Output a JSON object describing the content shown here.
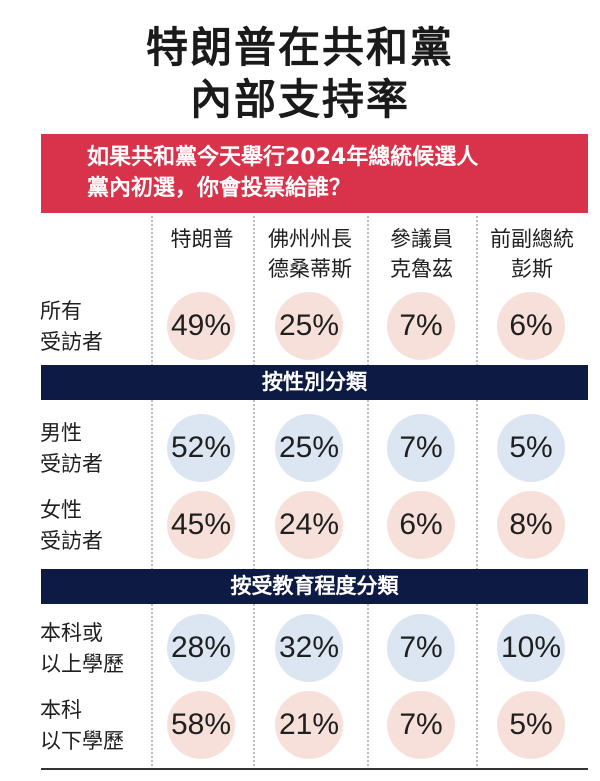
{
  "title_line1": "特朗普在共和黨",
  "title_line2": "內部支持率",
  "question_line1": "如果共和黨今天舉行2024年總統候選人",
  "question_line2": "黨內初選，你會投票給誰？",
  "columns": [
    {
      "line1": "特朗普",
      "line2": ""
    },
    {
      "line1": "佛州州長",
      "line2": "德桑蒂斯"
    },
    {
      "line1": "參議員",
      "line2": "克魯茲"
    },
    {
      "line1": "前副總統",
      "line2": "彭斯"
    }
  ],
  "sections": {
    "gender": "按性別分類",
    "education": "按受教育程度分類"
  },
  "colors": {
    "pink": "#f8e0da",
    "blue": "#dbe6f2",
    "red": "#d8334a",
    "navy": "#0d1a44"
  },
  "chart_data": {
    "type": "table",
    "categories": [
      "特朗普",
      "佛州州長德桑蒂斯",
      "參議員克魯茲",
      "前副總統彭斯"
    ],
    "rows": [
      {
        "label1": "所有",
        "label2": "受訪者",
        "values": [
          "49%",
          "25%",
          "7%",
          "6%"
        ],
        "color": "pink"
      },
      {
        "label1": "男性",
        "label2": "受訪者",
        "values": [
          "52%",
          "25%",
          "7%",
          "5%"
        ],
        "color": "blue"
      },
      {
        "label1": "女性",
        "label2": "受訪者",
        "values": [
          "45%",
          "24%",
          "6%",
          "8%"
        ],
        "color": "pink"
      },
      {
        "label1": "本科或",
        "label2": "以上學歷",
        "values": [
          "28%",
          "32%",
          "7%",
          "10%"
        ],
        "color": "blue"
      },
      {
        "label1": "本科",
        "label2": "以下學歷",
        "values": [
          "58%",
          "21%",
          "7%",
          "5%"
        ],
        "color": "pink"
      }
    ]
  }
}
